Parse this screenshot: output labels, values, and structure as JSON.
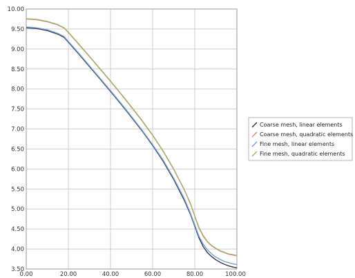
{
  "chart_data": {
    "type": "line",
    "title": "",
    "xlabel": "",
    "ylabel": "",
    "xlim": [
      0,
      100
    ],
    "ylim": [
      3.5,
      10
    ],
    "x_ticks": [
      "0.00",
      "20.00",
      "40.00",
      "60.00",
      "80.00",
      "100.00"
    ],
    "y_ticks": [
      "3.50",
      "4.00",
      "4.50",
      "5.00",
      "5.50",
      "6.00",
      "6.50",
      "7.00",
      "7.50",
      "8.00",
      "8.50",
      "9.00",
      "9.50",
      "10.00"
    ],
    "grid": true,
    "legend_position": "right",
    "x": [
      0,
      5,
      10,
      15,
      18,
      20,
      25,
      30,
      35,
      40,
      45,
      50,
      55,
      60,
      65,
      70,
      75,
      78,
      80,
      82,
      84,
      86,
      88,
      90,
      92,
      94,
      96,
      98,
      100
    ],
    "series": [
      {
        "name": "Coarse mesh, linear elements",
        "color": "#2b3550",
        "values": [
          9.53,
          9.51,
          9.46,
          9.37,
          9.29,
          9.17,
          8.87,
          8.56,
          8.25,
          7.94,
          7.62,
          7.29,
          6.95,
          6.59,
          6.19,
          5.74,
          5.22,
          4.86,
          4.57,
          4.28,
          4.06,
          3.91,
          3.81,
          3.73,
          3.67,
          3.62,
          3.58,
          3.55,
          3.53
        ]
      },
      {
        "name": "Coarse mesh, quadratic elements",
        "color": "#e0877a",
        "values": [
          9.75,
          9.73,
          9.68,
          9.6,
          9.52,
          9.41,
          9.11,
          8.81,
          8.5,
          8.19,
          7.87,
          7.54,
          7.2,
          6.84,
          6.44,
          5.99,
          5.48,
          5.12,
          4.82,
          4.52,
          4.32,
          4.18,
          4.08,
          4.01,
          3.95,
          3.91,
          3.87,
          3.85,
          3.83
        ]
      },
      {
        "name": "Fine mesh, linear elements",
        "color": "#7a9fcf",
        "values": [
          9.55,
          9.53,
          9.48,
          9.39,
          9.31,
          9.19,
          8.89,
          8.58,
          8.27,
          7.96,
          7.64,
          7.31,
          6.97,
          6.61,
          6.22,
          5.77,
          5.26,
          4.89,
          4.6,
          4.32,
          4.12,
          3.98,
          3.88,
          3.8,
          3.74,
          3.69,
          3.66,
          3.63,
          3.61
        ]
      },
      {
        "name": "Fine mesh, quadratic elements",
        "color": "#9fb56a",
        "values": [
          9.76,
          9.74,
          9.69,
          9.61,
          9.53,
          9.42,
          9.12,
          8.82,
          8.51,
          8.2,
          7.88,
          7.55,
          7.21,
          6.85,
          6.45,
          6.0,
          5.49,
          5.13,
          4.83,
          4.54,
          4.34,
          4.19,
          4.09,
          4.02,
          3.96,
          3.92,
          3.88,
          3.86,
          3.84
        ]
      }
    ]
  }
}
